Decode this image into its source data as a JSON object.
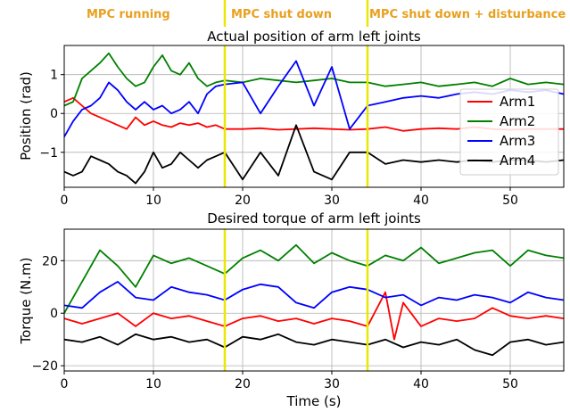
{
  "phases": [
    {
      "label": "MPC running",
      "start": 0,
      "end": 18
    },
    {
      "label": "MPC shut down",
      "start": 18,
      "end": 34
    },
    {
      "label": "MPC shut down + disturbance",
      "start": 34,
      "end": 56
    }
  ],
  "colors": {
    "phase_text": "#e8a020",
    "marker_line": "#e8e800",
    "grid": "#b0b0b0",
    "Arm1": "#ff0000",
    "Arm2": "#008000",
    "Arm3": "#0000ff",
    "Arm4": "#000000"
  },
  "chart_data": [
    {
      "type": "line",
      "title": "Actual position of arm left joints",
      "xlabel": "",
      "ylabel": "Position (rad)",
      "xlim": [
        0,
        56
      ],
      "ylim": [
        -1.9,
        1.75
      ],
      "xticks": [
        0,
        10,
        20,
        30,
        40,
        50
      ],
      "yticks": [
        -1,
        0,
        1
      ],
      "grid": true,
      "vlines": [
        18,
        34
      ],
      "legend": "right",
      "series": [
        {
          "name": "Arm1",
          "x": [
            0,
            1,
            2,
            3,
            4,
            5,
            6,
            7,
            8,
            9,
            10,
            11,
            12,
            13,
            14,
            15,
            16,
            17,
            18,
            20,
            22,
            24,
            26,
            28,
            30,
            32,
            34,
            36,
            38,
            40,
            42,
            44,
            46,
            48,
            50,
            52,
            54,
            56
          ],
          "y": [
            0.3,
            0.4,
            0.2,
            0.0,
            -0.1,
            -0.2,
            -0.3,
            -0.4,
            -0.1,
            -0.3,
            -0.2,
            -0.3,
            -0.35,
            -0.25,
            -0.3,
            -0.25,
            -0.35,
            -0.3,
            -0.4,
            -0.4,
            -0.38,
            -0.42,
            -0.4,
            -0.38,
            -0.4,
            -0.42,
            -0.4,
            -0.35,
            -0.45,
            -0.4,
            -0.38,
            -0.4,
            -0.35,
            -0.4,
            -0.42,
            -0.4,
            -0.4,
            -0.4
          ]
        },
        {
          "name": "Arm2",
          "x": [
            0,
            1,
            2,
            3,
            4,
            5,
            6,
            7,
            8,
            9,
            10,
            11,
            12,
            13,
            14,
            15,
            16,
            17,
            18,
            20,
            22,
            24,
            26,
            28,
            30,
            32,
            34,
            36,
            38,
            40,
            42,
            44,
            46,
            48,
            50,
            52,
            54,
            56
          ],
          "y": [
            0.2,
            0.3,
            0.9,
            1.1,
            1.3,
            1.55,
            1.2,
            0.9,
            0.7,
            0.8,
            1.2,
            1.5,
            1.1,
            1.0,
            1.3,
            0.9,
            0.7,
            0.8,
            0.85,
            0.8,
            0.9,
            0.85,
            0.8,
            0.85,
            0.9,
            0.8,
            0.8,
            0.7,
            0.75,
            0.8,
            0.7,
            0.75,
            0.8,
            0.7,
            0.9,
            0.75,
            0.8,
            0.75
          ]
        },
        {
          "name": "Arm3",
          "x": [
            0,
            1,
            2,
            3,
            4,
            5,
            6,
            7,
            8,
            9,
            10,
            11,
            12,
            13,
            14,
            15,
            16,
            17,
            18,
            20,
            22,
            24,
            26,
            28,
            30,
            32,
            34,
            36,
            38,
            40,
            42,
            44,
            46,
            48,
            50,
            52,
            54,
            56
          ],
          "y": [
            -0.6,
            -0.2,
            0.1,
            0.2,
            0.4,
            0.8,
            0.6,
            0.3,
            0.1,
            0.3,
            0.1,
            0.2,
            0.0,
            0.1,
            0.3,
            0.0,
            0.5,
            0.7,
            0.75,
            0.8,
            0.0,
            0.7,
            1.35,
            0.2,
            1.2,
            -0.4,
            0.2,
            0.3,
            0.4,
            0.45,
            0.4,
            0.5,
            0.55,
            0.5,
            0.6,
            0.55,
            0.6,
            0.5
          ]
        },
        {
          "name": "Arm4",
          "x": [
            0,
            1,
            2,
            3,
            4,
            5,
            6,
            7,
            8,
            9,
            10,
            11,
            12,
            13,
            14,
            15,
            16,
            17,
            18,
            20,
            22,
            24,
            26,
            28,
            30,
            32,
            34,
            36,
            38,
            40,
            42,
            44,
            46,
            48,
            50,
            52,
            54,
            56
          ],
          "y": [
            -1.5,
            -1.6,
            -1.5,
            -1.1,
            -1.2,
            -1.3,
            -1.5,
            -1.6,
            -1.8,
            -1.5,
            -1.0,
            -1.4,
            -1.3,
            -1.0,
            -1.2,
            -1.4,
            -1.2,
            -1.1,
            -1.0,
            -1.7,
            -1.0,
            -1.6,
            -0.3,
            -1.5,
            -1.7,
            -1.0,
            -1.0,
            -1.3,
            -1.2,
            -1.25,
            -1.2,
            -1.25,
            -1.2,
            -1.25,
            -1.2,
            -1.2,
            -1.25,
            -1.2
          ]
        }
      ]
    },
    {
      "type": "line",
      "title": "Desired torque of arm left joints",
      "xlabel": "Time (s)",
      "ylabel": "Torque (N.m)",
      "xlim": [
        0,
        56
      ],
      "ylim": [
        -22,
        32
      ],
      "xticks": [
        0,
        10,
        20,
        30,
        40,
        50
      ],
      "yticks": [
        -20,
        0,
        20
      ],
      "grid": true,
      "vlines": [
        18,
        34
      ],
      "series": [
        {
          "name": "Arm1",
          "x": [
            0,
            2,
            4,
            6,
            8,
            10,
            12,
            14,
            16,
            18,
            20,
            22,
            24,
            26,
            28,
            30,
            32,
            34,
            36,
            37,
            38,
            40,
            42,
            44,
            46,
            48,
            50,
            52,
            54,
            56
          ],
          "y": [
            -2,
            -4,
            -2,
            0,
            -5,
            0,
            -2,
            -1,
            -3,
            -5,
            -2,
            -1,
            -3,
            -2,
            -4,
            -2,
            -3,
            -5,
            8,
            -10,
            4,
            -5,
            -2,
            -3,
            -2,
            2,
            -1,
            -2,
            -1,
            -2
          ]
        },
        {
          "name": "Arm2",
          "x": [
            0,
            2,
            4,
            6,
            8,
            10,
            12,
            14,
            16,
            18,
            20,
            22,
            24,
            26,
            28,
            30,
            32,
            34,
            36,
            38,
            40,
            42,
            44,
            46,
            48,
            50,
            52,
            54,
            56
          ],
          "y": [
            0,
            12,
            24,
            18,
            10,
            22,
            19,
            21,
            18,
            15,
            21,
            24,
            20,
            26,
            19,
            23,
            20,
            18,
            22,
            20,
            25,
            19,
            21,
            23,
            24,
            18,
            24,
            22,
            21
          ]
        },
        {
          "name": "Arm3",
          "x": [
            0,
            2,
            4,
            6,
            8,
            10,
            12,
            14,
            16,
            18,
            20,
            22,
            24,
            26,
            28,
            30,
            32,
            34,
            36,
            38,
            40,
            42,
            44,
            46,
            48,
            50,
            52,
            54,
            56
          ],
          "y": [
            3,
            2,
            8,
            12,
            6,
            5,
            10,
            8,
            7,
            5,
            9,
            11,
            10,
            4,
            2,
            8,
            10,
            9,
            6,
            7,
            3,
            6,
            5,
            7,
            6,
            4,
            8,
            6,
            5
          ]
        },
        {
          "name": "Arm4",
          "x": [
            0,
            2,
            4,
            6,
            8,
            10,
            12,
            14,
            16,
            18,
            20,
            22,
            24,
            26,
            28,
            30,
            32,
            34,
            36,
            38,
            40,
            42,
            44,
            46,
            48,
            50,
            52,
            54,
            56
          ],
          "y": [
            -10,
            -11,
            -9,
            -12,
            -8,
            -10,
            -9,
            -11,
            -10,
            -13,
            -9,
            -10,
            -8,
            -11,
            -12,
            -10,
            -11,
            -12,
            -10,
            -13,
            -11,
            -12,
            -10,
            -14,
            -16,
            -11,
            -10,
            -12,
            -11
          ]
        }
      ]
    }
  ]
}
